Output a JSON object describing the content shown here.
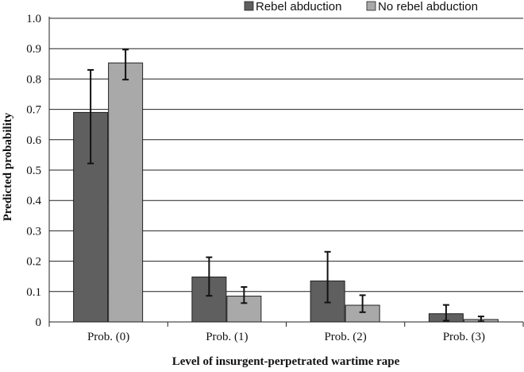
{
  "chart_data": {
    "type": "bar",
    "title": "",
    "xlabel": "Level of insurgent-perpetrated wartime rape",
    "ylabel": "Predicted probability",
    "ylim": [
      0,
      1.0
    ],
    "yticks": [
      "0",
      "0.1",
      "0.2",
      "0.3",
      "0.4",
      "0.5",
      "0.6",
      "0.7",
      "0.8",
      "0.9",
      "1.0"
    ],
    "grid": true,
    "legend_position": "top-right",
    "categories": [
      "Prob. (0)",
      "Prob. (1)",
      "Prob. (2)",
      "Prob. (3)"
    ],
    "series": [
      {
        "name": "Rebel abduction",
        "color": "#5f5f5f",
        "values": [
          0.69,
          0.148,
          0.135,
          0.027
        ],
        "error_low": [
          0.522,
          0.086,
          0.064,
          0.004
        ],
        "error_high": [
          0.83,
          0.213,
          0.231,
          0.056
        ]
      },
      {
        "name": "No rebel abduction",
        "color": "#a9a9a9",
        "values": [
          0.853,
          0.085,
          0.055,
          0.008
        ],
        "error_low": [
          0.798,
          0.062,
          0.032,
          0.002
        ],
        "error_high": [
          0.897,
          0.115,
          0.088,
          0.018
        ]
      }
    ]
  }
}
